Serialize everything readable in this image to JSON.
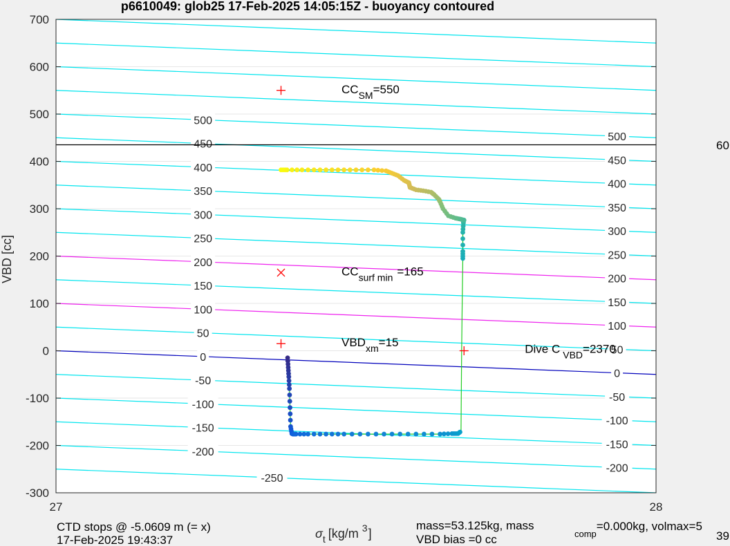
{
  "chart_data": {
    "type": "scatter",
    "title": "p6610049: glob25 17-Feb-2025 14:05:15Z - buoyancy contoured",
    "xlabel_main": "σ",
    "xlabel_sub": "t",
    "xlabel_unit": "[kg/m",
    "xlabel_exp": "3",
    "xlabel_close": "]",
    "ylabel": "VBD [cc]",
    "xlim": [
      27,
      28
    ],
    "ylim": [
      -300,
      700
    ],
    "xticks": [
      27,
      28
    ],
    "yticks": [
      -300,
      -200,
      -100,
      0,
      100,
      200,
      300,
      400,
      500,
      600,
      700
    ],
    "grid": true,
    "contour_levels": [
      -250,
      -200,
      -150,
      -100,
      -50,
      0,
      50,
      100,
      150,
      200,
      250,
      300,
      350,
      400,
      450,
      500
    ],
    "contour_label_left": [
      -250,
      -200,
      -150,
      -100,
      -50,
      0,
      50,
      100,
      150,
      200,
      250,
      300,
      350,
      400,
      450,
      500
    ],
    "contour_label_right": [
      -200,
      -150,
      -100,
      -50,
      0,
      50,
      100,
      150,
      200,
      250,
      300,
      350,
      400,
      450,
      500
    ],
    "contour_slope": -50,
    "highlight_levels": {
      "magenta": [
        100,
        200
      ],
      "blue": [
        0
      ]
    },
    "vbd_max_line": 435,
    "markers": [
      {
        "x": 27.375,
        "y": 550,
        "symbol": "+",
        "label_main": "CC",
        "label_sub": "SM",
        "label_tail": "=550"
      },
      {
        "x": 27.375,
        "y": 165,
        "symbol": "x",
        "label_main": "CC",
        "label_sub": "surf min",
        "label_tail": "=165"
      },
      {
        "x": 27.375,
        "y": 15,
        "symbol": "+",
        "label_main": "VBD",
        "label_sub": "xm",
        "label_tail": "=15"
      },
      {
        "x": 27.68,
        "y": 0,
        "symbol": "+",
        "label_main": "Dive C",
        "label_sub": "VBD",
        "label_tail": "=2370"
      }
    ],
    "series": [
      {
        "x": [
          27.386,
          27.387,
          27.388,
          27.389,
          27.39,
          27.391,
          27.393,
          27.395,
          27.4,
          27.42,
          27.45,
          27.48,
          27.52,
          27.56,
          27.6,
          27.64,
          27.66,
          27.67,
          27.675,
          27.676,
          27.677,
          27.678,
          27.678,
          27.678,
          27.679,
          27.679,
          27.68,
          27.674,
          27.666,
          27.654,
          27.645,
          27.64,
          27.638,
          27.63,
          27.625,
          27.612,
          27.6,
          27.59,
          27.588,
          27.58,
          27.57,
          27.56,
          27.55,
          27.53,
          27.5,
          27.47,
          27.44,
          27.41,
          27.385,
          27.375
        ],
        "y": [
          -15,
          -35,
          -55,
          -80,
          -120,
          -160,
          -175,
          -176,
          -176,
          -176,
          -176,
          -176,
          -176,
          -176,
          -176,
          -176,
          -175,
          -175,
          -170,
          0,
          100,
          195,
          210,
          250,
          270,
          275,
          276,
          278,
          280,
          285,
          300,
          315,
          320,
          330,
          335,
          338,
          340,
          345,
          355,
          360,
          370,
          375,
          380,
          382,
          382,
          382,
          382,
          382,
          382,
          382
        ]
      }
    ],
    "footer_left_1": "CTD stops @ -5.0609 m (= x)",
    "footer_left_2": "17-Feb-2025 19:43:37",
    "footer_mid_1": "mass=53.125kg, mass",
    "footer_mid_sub": "comp",
    "footer_mid_tail": "=0.000kg, volmax=5",
    "footer_mid_2": "VBD bias =0 cc",
    "footer_right_2": "39",
    "right_edge_label": "60",
    "colors": {
      "background": "#f0f0f0",
      "axes": "#ffffff",
      "contour": "#00e5ee",
      "magenta": "#ee22ee",
      "blue": "#0000bb",
      "marker": "#ff0000",
      "trace": "#22cc22",
      "maxline": "#000000"
    }
  }
}
